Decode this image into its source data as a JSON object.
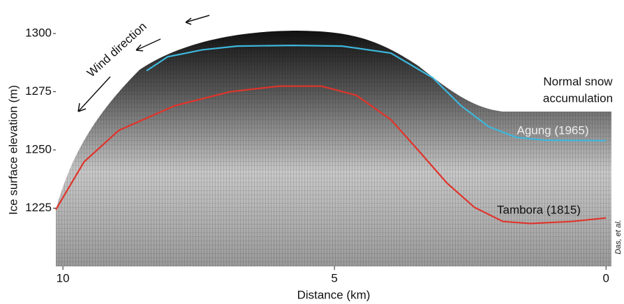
{
  "chart_data": {
    "type": "line",
    "x_label": "Distance (km)",
    "y_label": "Ice surface elevation (m)",
    "xlim": [
      10.13,
      -0.1
    ],
    "xticks": [
      10,
      5,
      0
    ],
    "ylim": [
      1200,
      1312
    ],
    "yticks": [
      1225,
      1250,
      1275,
      1300
    ],
    "series": [
      {
        "name": "Agung (1965)",
        "color": "#3db7dc",
        "x": [
          8.46,
          8.07,
          7.43,
          6.79,
          5.76,
          4.86,
          3.96,
          3.19,
          2.67,
          2.16,
          1.65,
          1.13,
          0
        ],
        "values": [
          1284,
          1290,
          1293,
          1294.6,
          1294.9,
          1294.6,
          1291.6,
          1281,
          1269,
          1260,
          1255.4,
          1254.2,
          1254
        ]
      },
      {
        "name": "Tambora (1815)",
        "color": "#e0342a",
        "x": [
          10.13,
          9.61,
          8.97,
          7.94,
          6.92,
          6.02,
          5.24,
          4.6,
          3.96,
          3.44,
          2.93,
          2.42,
          1.9,
          1.39,
          0.62,
          0
        ],
        "values": [
          1224.4,
          1244.9,
          1258.4,
          1269,
          1275,
          1277.4,
          1277.4,
          1273.5,
          1263,
          1249.4,
          1235.8,
          1225.3,
          1219.3,
          1218.4,
          1219.3,
          1220.8
        ]
      }
    ],
    "annotations": [
      "Wind direction",
      "Normal snow",
      "accumulation",
      "Das, et al."
    ]
  }
}
